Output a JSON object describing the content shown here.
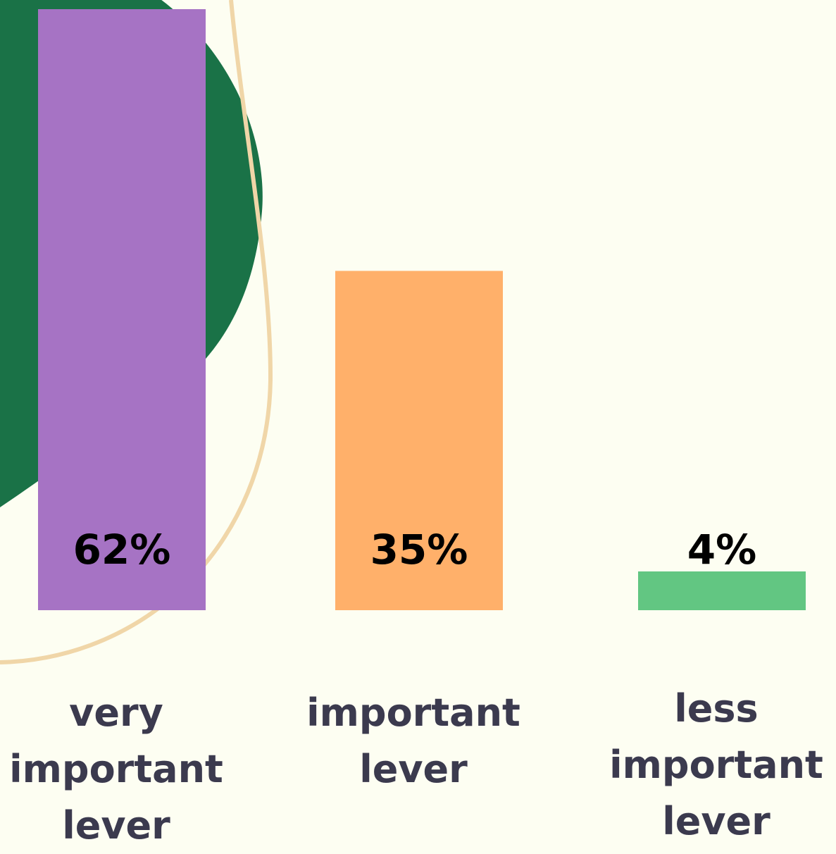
{
  "chart_data": {
    "type": "bar",
    "categories": [
      "very important lever",
      "important lever",
      "less important lever"
    ],
    "values": [
      62,
      35,
      4
    ],
    "value_labels": [
      "62%",
      "35%",
      "4%"
    ],
    "colors": [
      "#a673c4",
      "#ffb06a",
      "#62c682"
    ]
  }
}
